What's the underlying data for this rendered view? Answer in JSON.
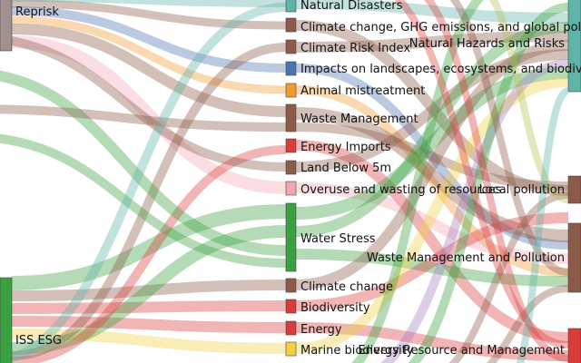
{
  "colors": {
    "green": "#3aa040",
    "teal": "#5fb3a8",
    "brown": "#8c5a48",
    "pink": "#f1a8b6",
    "orange": "#f29a31",
    "blue": "#4d72b0",
    "red": "#d93c3c",
    "yellow": "#f2cf45",
    "gray": "#a09090",
    "purple": "#a57dbf",
    "olive": "#b6bf5a"
  },
  "nodes": {
    "reprisk": {
      "label": "Reprisk"
    },
    "iss_esg": {
      "label": "ISS ESG"
    },
    "natural_disasters": {
      "label": "Natural Disasters"
    },
    "climate_ghg": {
      "label": "Climate change, GHG emissions, and global pollution"
    },
    "climate_risk_index": {
      "label": "Climate Risk Index"
    },
    "impacts_landscapes": {
      "label": "Impacts on landscapes, ecosystems, and biodiversity"
    },
    "animal_mistreatment": {
      "label": "Animal mistreatment"
    },
    "waste_management": {
      "label": "Waste Management"
    },
    "energy_imports": {
      "label": "Energy Imports"
    },
    "land_below_5m": {
      "label": "Land Below 5m"
    },
    "overuse_wasting": {
      "label": "Overuse and wasting of resources"
    },
    "water_stress": {
      "label": "Water Stress"
    },
    "climate_change": {
      "label": "Climate change"
    },
    "biodiversity": {
      "label": "Biodiversity"
    },
    "energy": {
      "label": "Energy"
    },
    "marine_biodiversity": {
      "label": "Marine biodiversity"
    },
    "natural_hazards": {
      "label": "Natural Hazards and Risks"
    },
    "local_pollution": {
      "label": "Local pollution"
    },
    "waste_pollution": {
      "label": "Waste Management and Pollution"
    },
    "energy_resource": {
      "label": "Energy Resource and Management"
    }
  }
}
